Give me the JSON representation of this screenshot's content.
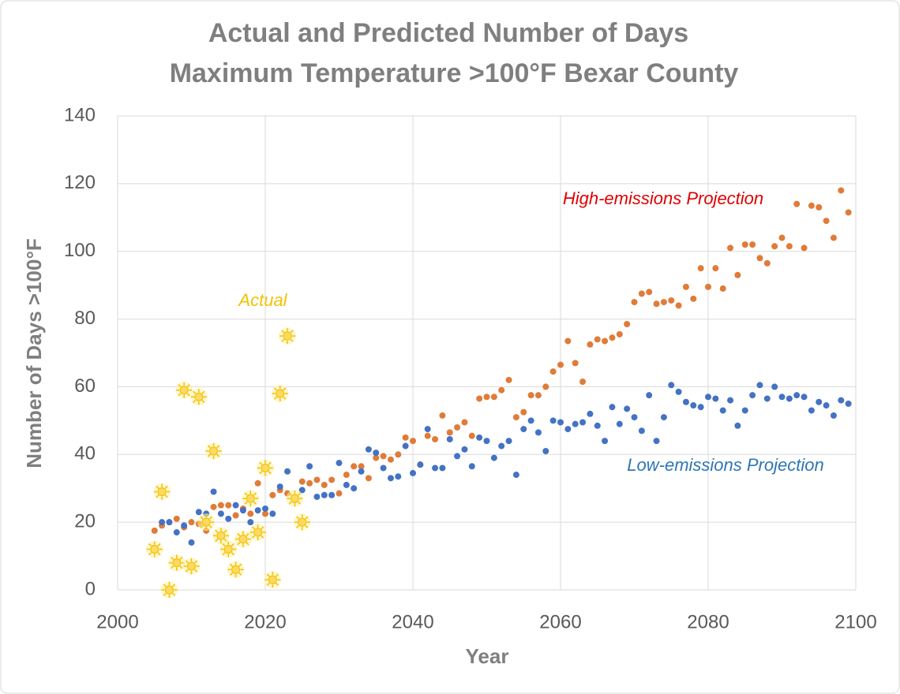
{
  "chart_data": {
    "type": "scatter",
    "title": "Actual and Predicted Number of Days",
    "subtitle": "Maximum Temperature >100°F Bexar County",
    "xlabel": "Year",
    "ylabel": "Number of Days >100°F",
    "xlim": [
      2000,
      2100
    ],
    "ylim": [
      0,
      140
    ],
    "xticks": [
      2000,
      2020,
      2040,
      2060,
      2080,
      2100
    ],
    "yticks": [
      0,
      20,
      40,
      60,
      80,
      100,
      120,
      140
    ],
    "grid": true,
    "series": [
      {
        "name": "Actual",
        "color": "#f2c200",
        "marker": "sun",
        "x": [
          2005,
          2006,
          2007,
          2008,
          2009,
          2010,
          2011,
          2012,
          2013,
          2014,
          2015,
          2016,
          2017,
          2018,
          2019,
          2020,
          2021,
          2022,
          2023,
          2024,
          2025
        ],
        "values": [
          12,
          29,
          0,
          8,
          59,
          7,
          57,
          20,
          41,
          16,
          12,
          6,
          15,
          27,
          17,
          36,
          3,
          58,
          75,
          27,
          20
        ]
      },
      {
        "name": "High-emissions Projection",
        "color": "#e07b39",
        "label_color": "#e00000",
        "marker": "dot",
        "x": [
          2005,
          2006,
          2007,
          2008,
          2009,
          2010,
          2011,
          2012,
          2013,
          2014,
          2015,
          2016,
          2017,
          2018,
          2019,
          2020,
          2021,
          2022,
          2023,
          2024,
          2025,
          2026,
          2027,
          2028,
          2029,
          2030,
          2031,
          2032,
          2033,
          2034,
          2035,
          2036,
          2037,
          2038,
          2039,
          2040,
          2041,
          2042,
          2043,
          2044,
          2045,
          2046,
          2047,
          2048,
          2049,
          2050,
          2051,
          2052,
          2053,
          2054,
          2055,
          2056,
          2057,
          2058,
          2059,
          2060,
          2061,
          2062,
          2063,
          2064,
          2065,
          2066,
          2067,
          2068,
          2069,
          2070,
          2071,
          2072,
          2073,
          2074,
          2075,
          2076,
          2077,
          2078,
          2079,
          2080,
          2081,
          2082,
          2083,
          2084,
          2085,
          2086,
          2087,
          2088,
          2089,
          2090,
          2091,
          2092,
          2093,
          2094,
          2095,
          2096,
          2097,
          2098,
          2099
        ],
        "values": [
          17.5,
          19,
          20,
          21,
          18.5,
          20,
          19.5,
          17.5,
          24.5,
          25,
          25,
          22,
          24,
          22.5,
          31.5,
          22.5,
          28,
          29.5,
          28.5,
          26.5,
          32,
          31.5,
          32.5,
          31,
          32.5,
          28.5,
          34,
          36.5,
          36.5,
          33,
          39,
          39.5,
          38.5,
          40,
          45,
          44,
          37,
          45.5,
          44.5,
          51.5,
          46.5,
          48,
          49.5,
          45.5,
          56.5,
          57,
          57,
          59,
          62,
          51,
          52.5,
          57.5,
          57.5,
          60,
          64.5,
          66.5,
          73.5,
          67,
          61.5,
          72.5,
          74,
          73.5,
          74.5,
          75.5,
          78.5,
          85,
          87.5,
          88,
          84.5,
          85,
          85.5,
          84,
          89.5,
          86,
          95,
          89.5,
          95,
          89,
          101,
          93,
          102,
          102,
          98,
          96.5,
          101.5,
          104,
          101.5,
          114,
          101,
          113.5,
          113,
          109,
          104,
          118,
          111.5
        ]
      },
      {
        "name": "Low-emissions Projection",
        "color": "#4472c4",
        "label_color": "#2e75b6",
        "marker": "dot",
        "x": [
          2006,
          2007,
          2008,
          2009,
          2010,
          2011,
          2012,
          2013,
          2014,
          2015,
          2016,
          2017,
          2018,
          2019,
          2020,
          2021,
          2022,
          2023,
          2024,
          2025,
          2026,
          2027,
          2028,
          2029,
          2030,
          2031,
          2032,
          2033,
          2034,
          2035,
          2036,
          2037,
          2038,
          2039,
          2040,
          2041,
          2042,
          2043,
          2044,
          2045,
          2046,
          2047,
          2048,
          2049,
          2050,
          2051,
          2052,
          2053,
          2054,
          2055,
          2056,
          2057,
          2058,
          2059,
          2060,
          2061,
          2062,
          2063,
          2064,
          2065,
          2066,
          2067,
          2068,
          2069,
          2070,
          2071,
          2072,
          2073,
          2074,
          2075,
          2076,
          2077,
          2078,
          2079,
          2080,
          2081,
          2082,
          2083,
          2084,
          2085,
          2086,
          2087,
          2088,
          2089,
          2090,
          2091,
          2092,
          2093,
          2094,
          2095,
          2096,
          2097,
          2098,
          2099
        ],
        "values": [
          20,
          20,
          17,
          19,
          14,
          23,
          22.5,
          29,
          22.5,
          21,
          25,
          23.5,
          20,
          23.5,
          24,
          22.5,
          30.5,
          35,
          27,
          29.5,
          36.5,
          27.5,
          28,
          28,
          37.5,
          31,
          30,
          35,
          41.5,
          40.5,
          36,
          33,
          33.5,
          42.5,
          34.5,
          37,
          47.5,
          36,
          36,
          44.5,
          39.5,
          41.5,
          36.5,
          45,
          44,
          39,
          42.5,
          44,
          34,
          47.5,
          50,
          46.5,
          41,
          50,
          49.5,
          47.5,
          49,
          49.5,
          52,
          48.5,
          44,
          54,
          49,
          53.5,
          51,
          47,
          57.5,
          44,
          51,
          60.5,
          58.5,
          55.5,
          54.5,
          54,
          57,
          56.5,
          53,
          56,
          48.5,
          53,
          57.5,
          60.5,
          56.5,
          60,
          57,
          56.5,
          57.5,
          57,
          53,
          55.5,
          54.5,
          51.5,
          56,
          55
        ]
      }
    ]
  }
}
